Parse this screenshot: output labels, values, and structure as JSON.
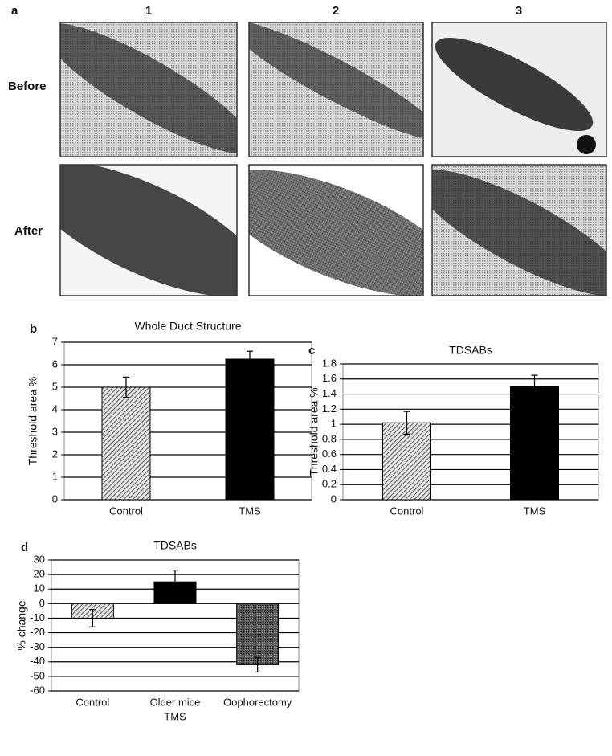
{
  "panel_a": {
    "panel": "a",
    "columns": [
      "1",
      "2",
      "3"
    ],
    "rows": [
      "Before",
      "After"
    ]
  },
  "chart_data": [
    {
      "type": "bar",
      "panel": "b",
      "title": "Whole Duct Structure",
      "ylabel": "Threshold area %",
      "categories": [
        "Control",
        "TMS"
      ],
      "values": [
        5.0,
        6.25
      ],
      "errors": [
        0.45,
        0.35
      ],
      "colors": [
        "#9a9a9a",
        "#000000"
      ],
      "patterns": [
        "hatch",
        "solid"
      ],
      "ylim": [
        0,
        7
      ],
      "yticks": [
        0,
        1,
        2,
        3,
        4,
        5,
        6,
        7
      ],
      "grid": true
    },
    {
      "type": "bar",
      "panel": "c",
      "title": "TDSABs",
      "ylabel": "Threshold area %",
      "categories": [
        "Control",
        "TMS"
      ],
      "values": [
        1.02,
        1.5
      ],
      "errors": [
        0.15,
        0.15
      ],
      "colors": [
        "#9a9a9a",
        "#000000"
      ],
      "patterns": [
        "hatch",
        "solid"
      ],
      "ylim": [
        0,
        1.8
      ],
      "yticks": [
        0,
        0.2,
        0.4,
        0.6,
        0.8,
        1,
        1.2,
        1.4,
        1.6,
        1.8
      ],
      "grid": true
    },
    {
      "type": "bar",
      "panel": "d",
      "title": "TDSABs",
      "ylabel": "% change",
      "categories": [
        [
          "Control"
        ],
        [
          "Older mice",
          "TMS"
        ],
        [
          "Oophorectomy"
        ]
      ],
      "values": [
        -10,
        15,
        -42
      ],
      "errors": [
        6,
        8,
        5
      ],
      "colors": [
        "#9a9a9a",
        "#000000",
        "#3a3a3a"
      ],
      "patterns": [
        "hatch",
        "solid",
        "stipple"
      ],
      "ylim": [
        -60,
        30
      ],
      "yticks": [
        -60,
        -50,
        -40,
        -30,
        -20,
        -10,
        0,
        10,
        20,
        30
      ],
      "grid": true
    }
  ]
}
